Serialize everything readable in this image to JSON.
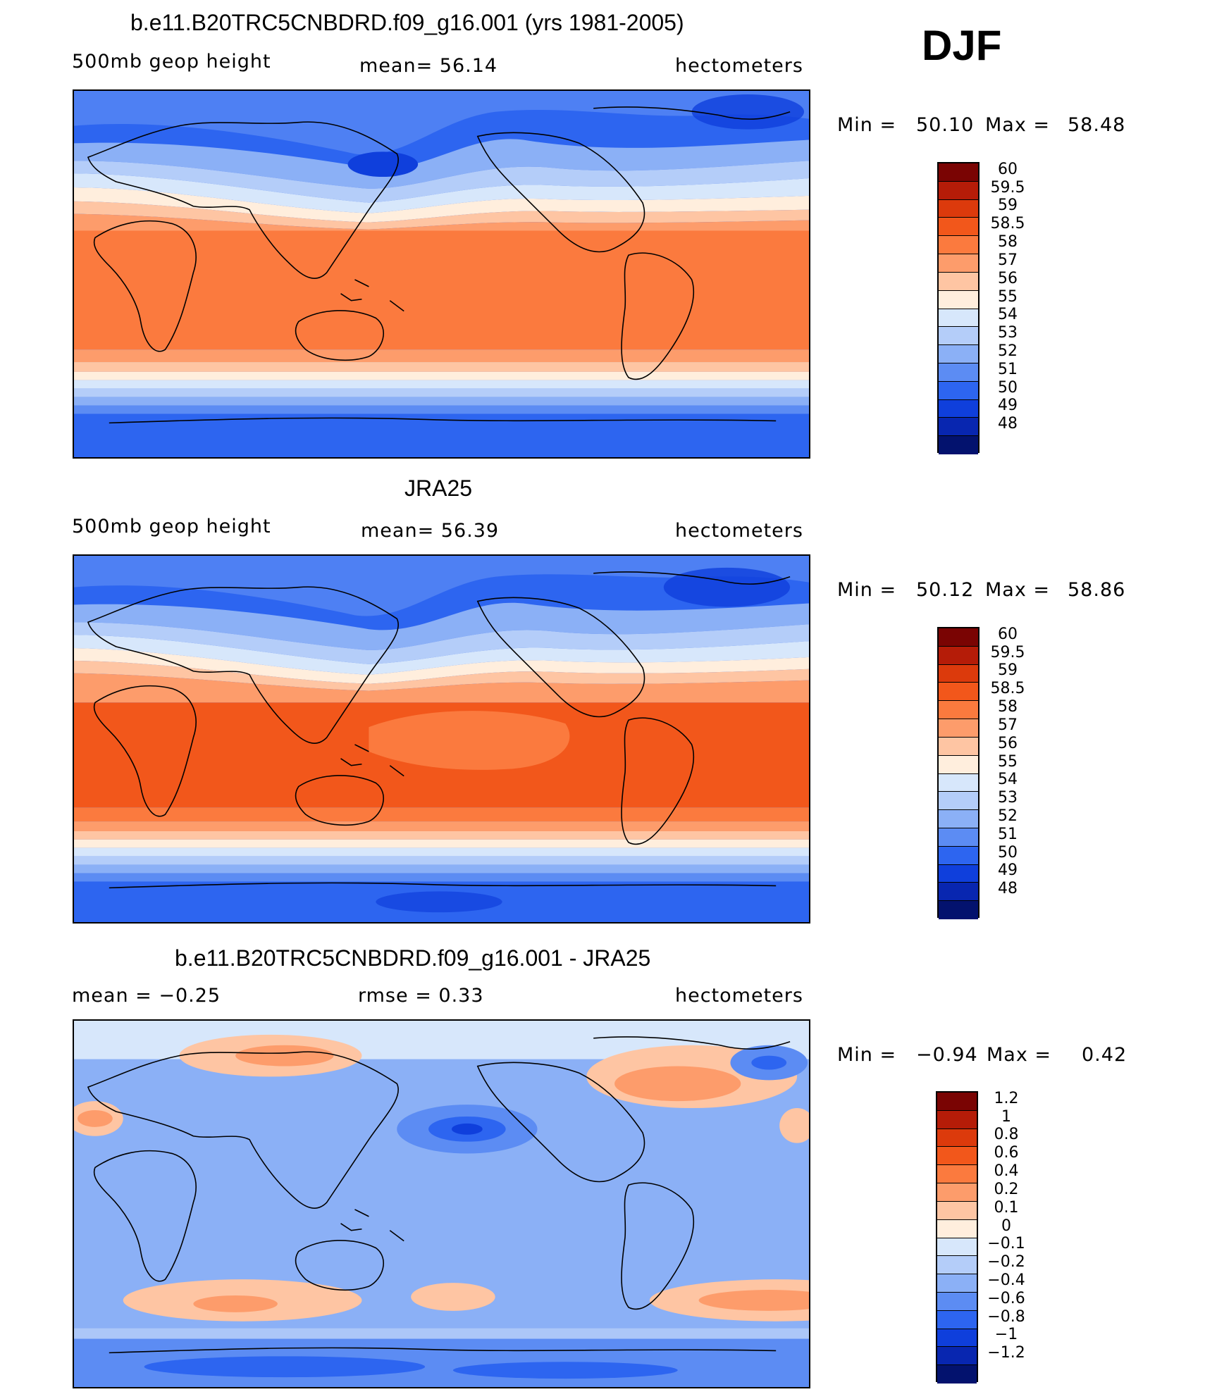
{
  "season": "DJF",
  "units": "hectometers",
  "panels": [
    {
      "title": "b.e11.B20TRC5CNBDRD.f09_g16.001 (yrs 1981-2005)",
      "left_label": "500mb geop height",
      "mean_text": "mean=   56.14",
      "units": "hectometers",
      "minmax": {
        "min_label": "Min =",
        "min": "50.10",
        "max_label": "Max =",
        "max": "58.48"
      }
    },
    {
      "title": "JRA25",
      "left_label": "500mb geop height",
      "mean_text": "mean=   56.39",
      "units": "hectometers",
      "minmax": {
        "min_label": "Min =",
        "min": "50.12",
        "max_label": "Max =",
        "max": "58.86"
      }
    },
    {
      "title": "b.e11.B20TRC5CNBDRD.f09_g16.001 - JRA25",
      "left_label": "mean =   −0.25",
      "mean_text": "rmse =    0.33",
      "units": "hectometers",
      "minmax": {
        "min_label": "Min =",
        "min": "−0.94",
        "max_label": "Max =",
        "max": "0.42"
      }
    }
  ],
  "colorbars": {
    "height": {
      "labels": [
        "60",
        "59.5",
        "59",
        "58.5",
        "58",
        "57",
        "56",
        "55",
        "54",
        "53",
        "52",
        "51",
        "50",
        "49",
        "48"
      ],
      "colors": [
        "#7a0403",
        "#b51c08",
        "#dc3a0c",
        "#f2571b",
        "#fb7a3e",
        "#fd9c6b",
        "#fec5a3",
        "#ffeedd",
        "#d7e7fb",
        "#b4cdf9",
        "#8bb0f6",
        "#5c8cf3",
        "#2d65f0",
        "#0f3fdc",
        "#0826b0",
        "#03126e"
      ]
    },
    "diff": {
      "labels": [
        "1.2",
        "1",
        "0.8",
        "0.6",
        "0.4",
        "0.2",
        "0.1",
        "0",
        "−0.1",
        "−0.2",
        "−0.4",
        "−0.6",
        "−0.8",
        "−1",
        "−1.2"
      ],
      "colors": [
        "#7a0403",
        "#b51c08",
        "#dc3a0c",
        "#f2571b",
        "#fb7a3e",
        "#fd9c6b",
        "#fec5a3",
        "#ffeedd",
        "#d7e7fb",
        "#b4cdf9",
        "#8bb0f6",
        "#5c8cf3",
        "#2d65f0",
        "#0f3fdc",
        "#0826b0",
        "#03126e"
      ]
    }
  },
  "chart_data": [
    {
      "type": "heatmap",
      "title": "b.e11.B20TRC5CNBDRD.f09_g16.001 (yrs 1981-2005)",
      "variable": "500mb geop height",
      "units": "hectometers",
      "mean": 56.14,
      "min": 50.1,
      "max": 58.48,
      "contour_levels": [
        48,
        49,
        50,
        51,
        52,
        53,
        54,
        55,
        56,
        57,
        58,
        58.5,
        59,
        59.5,
        60
      ]
    },
    {
      "type": "heatmap",
      "title": "JRA25",
      "variable": "500mb geop height",
      "units": "hectometers",
      "mean": 56.39,
      "min": 50.12,
      "max": 58.86,
      "contour_levels": [
        48,
        49,
        50,
        51,
        52,
        53,
        54,
        55,
        56,
        57,
        58,
        58.5,
        59,
        59.5,
        60
      ]
    },
    {
      "type": "heatmap",
      "title": "b.e11.B20TRC5CNBDRD.f09_g16.001 - JRA25",
      "units": "hectometers",
      "mean": -0.25,
      "rmse": 0.33,
      "min": -0.94,
      "max": 0.42,
      "contour_levels": [
        -1.2,
        -1,
        -0.8,
        -0.6,
        -0.4,
        -0.2,
        -0.1,
        0,
        0.1,
        0.2,
        0.4,
        0.6,
        0.8,
        1,
        1.2
      ]
    }
  ]
}
